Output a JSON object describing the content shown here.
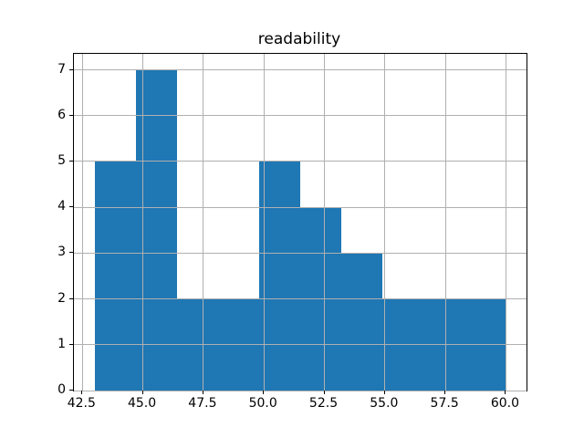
{
  "chart_data": {
    "type": "bar",
    "subtype": "histogram",
    "title": "readability",
    "bin_edges": [
      43.0,
      44.7,
      46.4,
      48.1,
      49.8,
      51.5,
      53.2,
      54.9,
      56.6,
      58.3,
      60.0
    ],
    "counts": [
      5,
      7,
      2,
      2,
      5,
      4,
      3,
      2,
      2,
      2
    ],
    "x_ticks": [
      42.5,
      45.0,
      47.5,
      50.0,
      52.5,
      55.0,
      57.5,
      60.0
    ],
    "x_tick_labels": [
      "42.5",
      "45.0",
      "47.5",
      "50.0",
      "52.5",
      "55.0",
      "57.5",
      "60.0"
    ],
    "y_ticks": [
      0,
      1,
      2,
      3,
      4,
      5,
      6,
      7
    ],
    "y_tick_labels": [
      "0",
      "1",
      "2",
      "3",
      "4",
      "5",
      "6",
      "7"
    ],
    "xlim": [
      42.15,
      60.85
    ],
    "ylim": [
      0,
      7.35
    ],
    "xlabel": "",
    "ylabel": "",
    "grid": true,
    "legend": false,
    "bar_color": "#1f77b4",
    "grid_color": "#b0b0b0",
    "spine_color": "#000000",
    "text_color": "#000000",
    "background_color": "#ffffff"
  }
}
